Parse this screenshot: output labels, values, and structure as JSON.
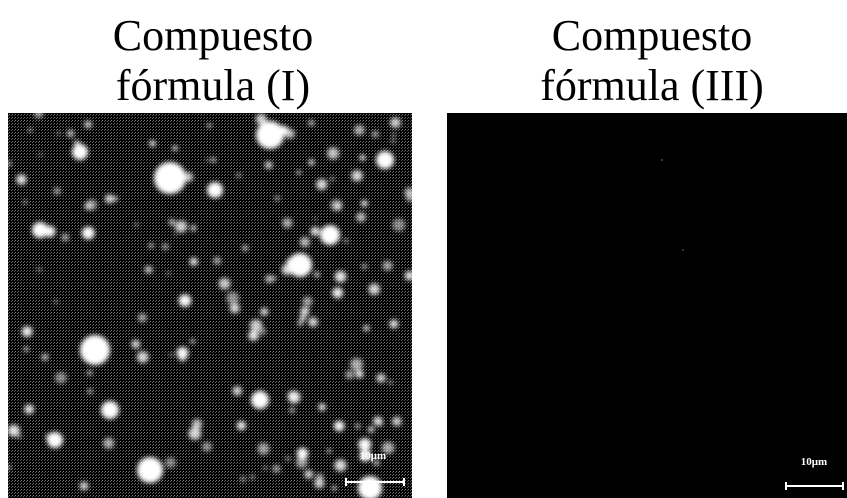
{
  "panels": [
    {
      "title": [
        "Compuesto",
        "fórmula (I)"
      ],
      "scale_bar": "10μm"
    },
    {
      "title": [
        "Compuesto",
        "fórmula (III)"
      ],
      "scale_bar": "10μm"
    }
  ]
}
